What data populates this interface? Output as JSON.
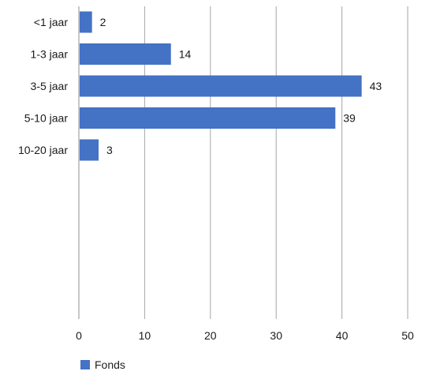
{
  "chart_data": {
    "type": "bar",
    "orientation": "horizontal",
    "categories": [
      "<1 jaar",
      "1-3 jaar",
      "3-5 jaar",
      "5-10 jaar",
      "10-20 jaar"
    ],
    "series": [
      {
        "name": "Fonds",
        "values": [
          2,
          14,
          43,
          39,
          3
        ],
        "color": "#4472c4"
      }
    ],
    "value_axis": {
      "min": 0,
      "max": 50,
      "ticks": [
        0,
        10,
        20,
        30,
        40,
        50
      ]
    },
    "grid": true,
    "legend_position": "bottom-left",
    "data_labels": true,
    "title": "",
    "xlabel": "",
    "ylabel": ""
  }
}
